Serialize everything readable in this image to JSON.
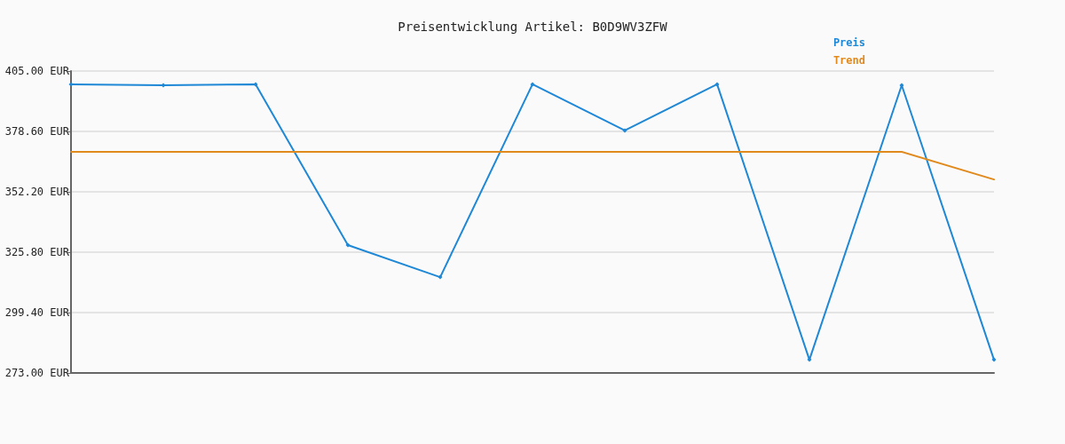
{
  "chart_data": {
    "type": "line",
    "title": "Preisentwicklung Artikel: B0D9WV3ZFW",
    "categories": [
      null,
      null,
      null,
      null,
      null,
      null,
      null,
      null,
      null,
      null,
      null
    ],
    "series": [
      {
        "name": "Preis",
        "color": "#1f88d6",
        "marker": "diamond",
        "values": [
          399.2,
          398.8,
          399.2,
          328.9,
          314.9,
          399.2,
          379.0,
          399.2,
          278.8,
          398.8,
          278.8
        ]
      },
      {
        "name": "Trend",
        "color": "#e08a1e",
        "marker": "none",
        "values": [
          369.7,
          369.7,
          369.7,
          369.7,
          369.7,
          369.7,
          369.7,
          369.7,
          369.7,
          369.7,
          357.6
        ]
      }
    ],
    "ylim": [
      273,
      405
    ],
    "yticks": [
      {
        "value": 273,
        "label": "273.00 EUR"
      },
      {
        "value": 299.4,
        "label": "299.40 EUR"
      },
      {
        "value": 325.8,
        "label": "325.80 EUR"
      },
      {
        "value": 352.2,
        "label": "352.20 EUR"
      },
      {
        "value": 378.6,
        "label": "378.60 EUR"
      },
      {
        "value": 405,
        "label": "405.00 EUR"
      }
    ],
    "grid": "y",
    "legend": "top right",
    "line_style": "solid"
  }
}
